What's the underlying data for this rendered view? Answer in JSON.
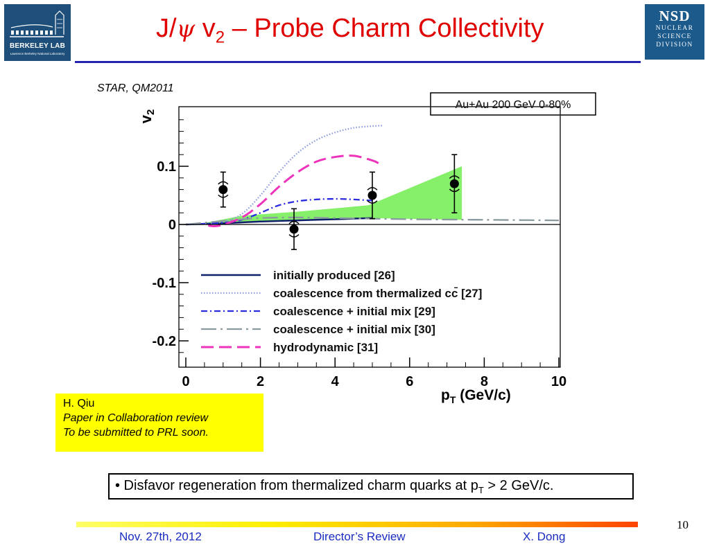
{
  "title": {
    "prefix": "J/",
    "psi": "ψ",
    "v": " v",
    "sub": "2",
    "suffix": " – Probe Charm Collectivity"
  },
  "logos": {
    "lbl": {
      "name": "BERKELEY LAB",
      "sub": "Lawrence Berkeley National Laboratory"
    },
    "nsd": {
      "abbr": "NSD",
      "lines": [
        "NUCLEAR",
        "SCIENCE",
        "DIVISION"
      ]
    }
  },
  "chart_data": {
    "type": "scatter",
    "source_label": "STAR, QM2011",
    "condition_label": "Au+Au 200 GeV 0-80%",
    "xlabel": "p",
    "xlabel_sub": "T",
    "xlabel_unit": " (GeV/c)",
    "ylabel": "v",
    "ylabel_sub": "2",
    "xlim": [
      0,
      10
    ],
    "ylim": [
      -0.24,
      0.2
    ],
    "x_ticks": [
      "0",
      "2",
      "4",
      "6",
      "8",
      "10"
    ],
    "y_ticks": [
      "0.1",
      "0",
      "-0.1",
      "-0.2"
    ],
    "data_points": [
      {
        "x": 1.0,
        "y": 0.06,
        "stat_err": 0.03,
        "sys_err": 0.014
      },
      {
        "x": 2.9,
        "y": -0.008,
        "stat_err": 0.035,
        "sys_err": 0.014
      },
      {
        "x": 5.0,
        "y": 0.05,
        "stat_err": 0.04,
        "sys_err": 0.014
      },
      {
        "x": 7.2,
        "y": 0.07,
        "stat_err": 0.05,
        "sys_err": 0.014
      }
    ],
    "nonflow_band": {
      "upper": [
        [
          0.3,
          0
        ],
        [
          1.5,
          0.015
        ],
        [
          3.0,
          0.022
        ],
        [
          4.9,
          0.033
        ],
        [
          7.4,
          0.1
        ]
      ],
      "lower": [
        [
          7.4,
          0.008
        ],
        [
          4.9,
          0.011
        ],
        [
          3.0,
          0.008
        ],
        [
          1.5,
          0.004
        ],
        [
          0.3,
          0
        ]
      ],
      "color": "#86f06a"
    },
    "series": [
      {
        "name": "initially produced [26]",
        "style": "solid",
        "color": "#0f1f6a",
        "points": [
          [
            0,
            0
          ],
          [
            1,
            0.002
          ],
          [
            2,
            0.005
          ],
          [
            3,
            0.007
          ],
          [
            4,
            0.009
          ],
          [
            5,
            0.011
          ]
        ]
      },
      {
        "name": "coalescence from thermalized cc̄ [27]",
        "style": "dotted",
        "color": "#8899dd",
        "points": [
          [
            0,
            0
          ],
          [
            0.5,
            0.001
          ],
          [
            1,
            0.005
          ],
          [
            1.5,
            0.018
          ],
          [
            2,
            0.05
          ],
          [
            2.5,
            0.09
          ],
          [
            3,
            0.123
          ],
          [
            3.5,
            0.145
          ],
          [
            4,
            0.158
          ],
          [
            4.5,
            0.166
          ],
          [
            5,
            0.169
          ],
          [
            5.3,
            0.17
          ]
        ]
      },
      {
        "name": "coalescence + initial mix [29]",
        "style": "dashdot",
        "color": "#2a2ae0",
        "points": [
          [
            0,
            0
          ],
          [
            1,
            0.003
          ],
          [
            1.5,
            0.008
          ],
          [
            2,
            0.02
          ],
          [
            2.5,
            0.033
          ],
          [
            3,
            0.04
          ],
          [
            3.5,
            0.043
          ],
          [
            4,
            0.044
          ],
          [
            4.5,
            0.043
          ],
          [
            5,
            0.041
          ]
        ]
      },
      {
        "name": "coalescence + initial mix [30]",
        "style": "longdashdot",
        "color": "#8a9aa0",
        "points": [
          [
            0,
            0
          ],
          [
            1,
            0.006
          ],
          [
            2,
            0.011
          ],
          [
            3,
            0.012
          ],
          [
            4,
            0.011
          ],
          [
            6,
            0.009
          ],
          [
            8,
            0.008
          ],
          [
            10,
            0.007
          ]
        ]
      },
      {
        "name": "hydrodynamic [31]",
        "style": "dashed",
        "color": "#ee33bb",
        "points": [
          [
            0.6,
            -0.002
          ],
          [
            0.9,
            -0.002
          ],
          [
            1.5,
            0.012
          ],
          [
            2,
            0.035
          ],
          [
            2.5,
            0.065
          ],
          [
            3,
            0.09
          ],
          [
            3.5,
            0.108
          ],
          [
            4,
            0.116
          ],
          [
            4.5,
            0.118
          ],
          [
            5,
            0.11
          ],
          [
            5.2,
            0.104
          ]
        ]
      }
    ]
  },
  "note": {
    "author": "H. Qiu",
    "line2": "Paper in Collaboration review",
    "line3": "To be submitted to PRL soon."
  },
  "bullet": {
    "text": "• Disfavor regeneration from thermalized charm quarks at p",
    "sub": "T",
    "tail": " > 2 GeV/c."
  },
  "footer": {
    "date": "Nov. 27th, 2012",
    "event": "Director’s Review",
    "author": "X. Dong",
    "page": "10"
  }
}
